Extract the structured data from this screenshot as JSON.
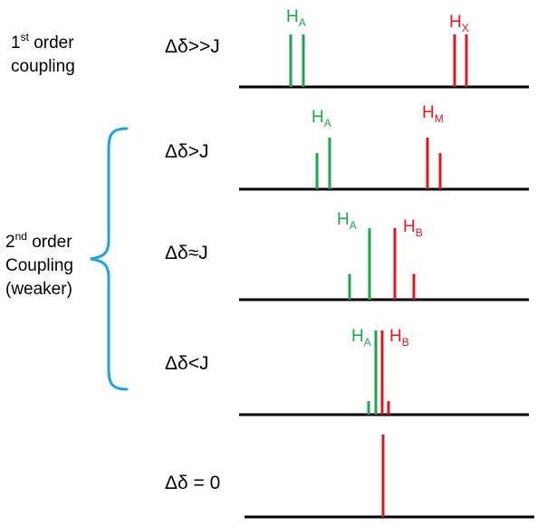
{
  "first_order": {
    "line1_prefix": "1",
    "line1_sup": "st",
    "line1_suffix": " order",
    "line2": "coupling"
  },
  "second_order": {
    "line1_prefix": "2",
    "line1_sup": "nd",
    "line1_suffix": " order",
    "line2": "Coupling",
    "line3": "(weaker)"
  },
  "colors": {
    "proton_a": "#1aa84a",
    "proton_b": "#e8141c",
    "brace": "#1ea3e6",
    "baseline": "#000000"
  },
  "rows": [
    {
      "condition": "Δδ>>J",
      "label_a": "H",
      "sub_a": "A",
      "label_b": "H",
      "sub_b": "X",
      "peaks_a": [
        1.0,
        1.0
      ],
      "peaks_b": [
        1.0,
        1.0
      ]
    },
    {
      "condition": "Δδ>J",
      "label_a": "H",
      "sub_a": "A",
      "label_b": "H",
      "sub_b": "M",
      "peaks_a": [
        0.7,
        1.0
      ],
      "peaks_b": [
        1.0,
        0.7
      ]
    },
    {
      "condition": "Δδ≈J",
      "label_a": "H",
      "sub_a": "A",
      "label_b": "H",
      "sub_b": "B",
      "peaks_a": [
        0.36,
        1.0
      ],
      "peaks_b": [
        1.0,
        0.36
      ]
    },
    {
      "condition": "Δδ<J",
      "label_a": "H",
      "sub_a": "A",
      "label_b": "H",
      "sub_b": "B",
      "peaks_a": [
        0.16,
        1.0
      ],
      "peaks_b": [
        1.0,
        0.16
      ]
    },
    {
      "condition": "Δδ = 0"
    }
  ]
}
